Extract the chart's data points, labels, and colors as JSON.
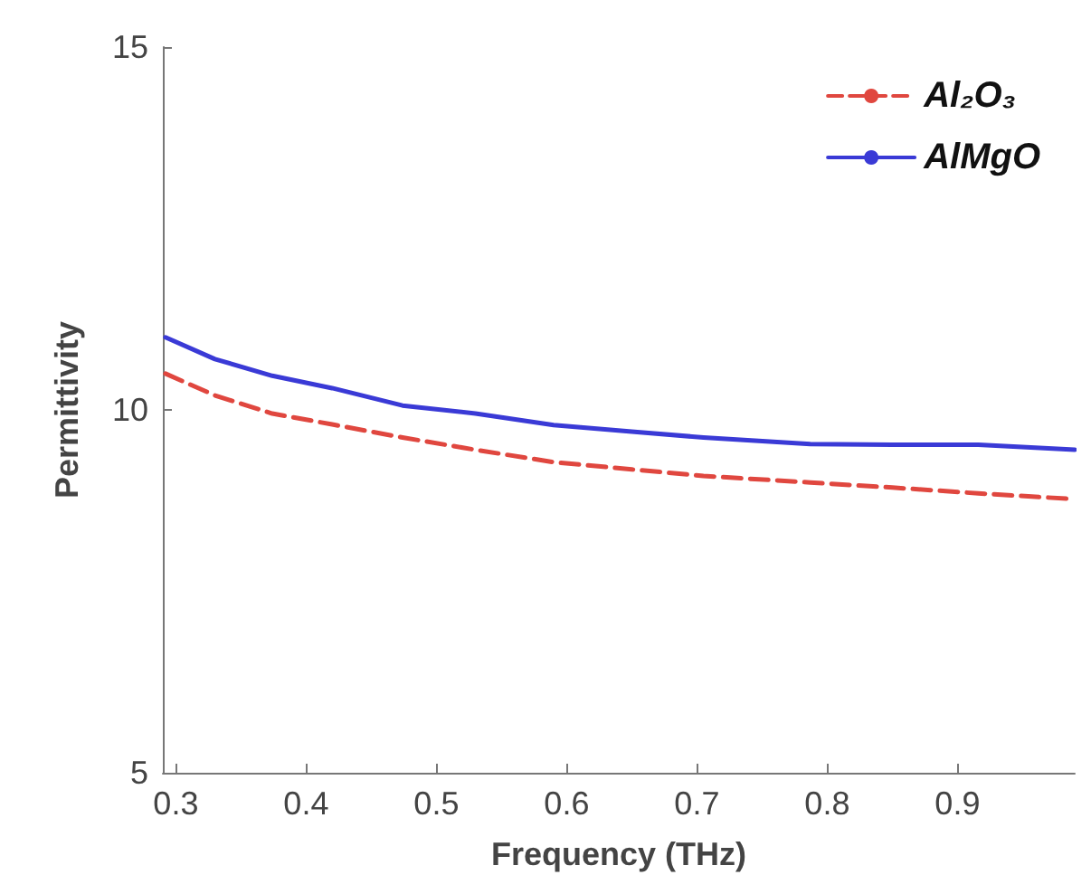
{
  "chart_data": {
    "type": "line",
    "xlabel": "Frequency (THz)",
    "ylabel": "Permittivity",
    "xlim": [
      0.29,
      0.99
    ],
    "xticks": [
      0.3,
      0.4,
      0.5,
      0.6,
      0.7,
      0.8,
      0.9
    ],
    "ylim": [
      5,
      15
    ],
    "yticks": [
      5,
      10,
      15
    ],
    "grid": false,
    "legend": "top right",
    "marker": "none",
    "x": [
      0.292,
      0.33,
      0.374,
      0.42,
      0.474,
      0.53,
      0.59,
      0.65,
      0.705,
      0.787,
      0.85,
      0.916,
      0.99
    ],
    "series": [
      {
        "name": "Al₂O₃",
        "color": "#e0473f",
        "line_style": "dashed",
        "values": [
          10.5,
          10.2,
          9.95,
          9.8,
          9.62,
          9.45,
          9.28,
          9.18,
          9.09,
          9.0,
          8.93,
          8.85,
          8.77
        ]
      },
      {
        "name": "AlMgO",
        "color": "#3a3ad6",
        "line_style": "solid",
        "values": [
          11.0,
          10.7,
          10.47,
          10.3,
          10.06,
          9.95,
          9.79,
          9.7,
          9.62,
          9.53,
          9.52,
          9.52,
          9.45
        ]
      }
    ]
  }
}
